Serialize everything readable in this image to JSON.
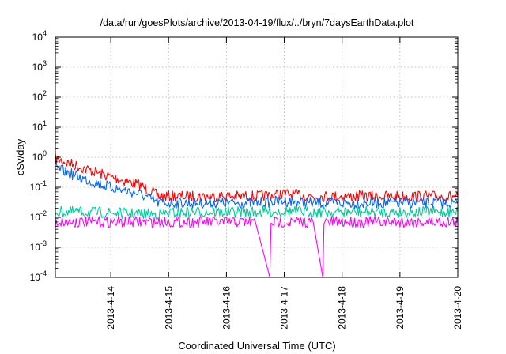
{
  "chart_data": {
    "type": "line",
    "title": "/data/run/goesPlots/archive/2013-04-19/flux/../bryn/7daysEarthData.plot",
    "xlabel": "Coordinated Universal Time (UTC)",
    "ylabel": "cSv/day",
    "yscale": "log",
    "ylim": [
      0.0001,
      10000
    ],
    "xlim": [
      "2013-04-13 01:00",
      "2013-04-20 00:00"
    ],
    "grid": true,
    "legend": "none",
    "y_ticks": [
      {
        "base": "10",
        "exp": "-4"
      },
      {
        "base": "10",
        "exp": "-3"
      },
      {
        "base": "10",
        "exp": "-2"
      },
      {
        "base": "10",
        "exp": "-1"
      },
      {
        "base": "10",
        "exp": "0"
      },
      {
        "base": "10",
        "exp": "1"
      },
      {
        "base": "10",
        "exp": "2"
      },
      {
        "base": "10",
        "exp": "3"
      },
      {
        "base": "10",
        "exp": "4"
      }
    ],
    "x_ticks": [
      "2013-4-14",
      "2013-4-15",
      "2013-4-16",
      "2013-4-17",
      "2013-4-18",
      "2013-4-19",
      "2013-4-20"
    ],
    "series": [
      {
        "color": "#ff0000",
        "x": [
          "2013-04-13 01:00",
          "2013-04-13 12:00",
          "2013-04-14 00:00",
          "2013-04-14 12:00",
          "2013-04-14 20:00",
          "2013-04-15 06:00",
          "2013-04-15 12:00",
          "2013-04-16 00:00",
          "2013-04-16 12:00",
          "2013-04-17 00:00",
          "2013-04-17 12:00",
          "2013-04-18 00:00",
          "2013-04-18 12:00",
          "2013-04-19 00:00",
          "2013-04-19 12:00",
          "2013-04-20 00:00"
        ],
        "values": [
          0.9,
          0.45,
          0.22,
          0.12,
          0.05,
          0.05,
          0.05,
          0.05,
          0.05,
          0.06,
          0.05,
          0.05,
          0.05,
          0.05,
          0.05,
          0.05
        ]
      },
      {
        "color": "#0066ff",
        "x": [
          "2013-04-13 01:00",
          "2013-04-13 12:00",
          "2013-04-14 00:00",
          "2013-04-14 12:00",
          "2013-04-14 20:00",
          "2013-04-15 06:00",
          "2013-04-15 12:00",
          "2013-04-16 00:00",
          "2013-04-16 12:00",
          "2013-04-17 00:00",
          "2013-04-17 12:00",
          "2013-04-18 00:00",
          "2013-04-18 12:00",
          "2013-04-19 00:00",
          "2013-04-19 12:00",
          "2013-04-20 00:00"
        ],
        "values": [
          0.45,
          0.2,
          0.1,
          0.06,
          0.03,
          0.03,
          0.03,
          0.03,
          0.03,
          0.035,
          0.03,
          0.03,
          0.03,
          0.03,
          0.03,
          0.03
        ]
      },
      {
        "color": "#00cc99",
        "x": [
          "2013-04-13 01:00",
          "2013-04-13 12:00",
          "2013-04-14 00:00",
          "2013-04-14 12:00",
          "2013-04-14 20:00",
          "2013-04-15 06:00",
          "2013-04-15 12:00",
          "2013-04-16 00:00",
          "2013-04-16 12:00",
          "2013-04-17 00:00",
          "2013-04-17 12:00",
          "2013-04-18 00:00",
          "2013-04-18 12:00",
          "2013-04-19 00:00",
          "2013-04-19 12:00",
          "2013-04-20 00:00"
        ],
        "values": [
          0.015,
          0.015,
          0.014,
          0.013,
          0.013,
          0.015,
          0.015,
          0.015,
          0.015,
          0.016,
          0.015,
          0.015,
          0.015,
          0.015,
          0.015,
          0.015
        ]
      },
      {
        "color": "#ff00ff",
        "x": [
          "2013-04-13 01:00",
          "2013-04-13 12:00",
          "2013-04-14 00:00",
          "2013-04-14 12:00",
          "2013-04-14 20:00",
          "2013-04-15 06:00",
          "2013-04-15 12:00",
          "2013-04-16 00:00",
          "2013-04-16 12:00",
          "2013-04-16 18:00",
          "2013-04-16 18:30",
          "2013-04-17 00:00",
          "2013-04-17 12:00",
          "2013-04-17 16:00",
          "2013-04-17 16:30",
          "2013-04-18 00:00",
          "2013-04-18 12:00",
          "2013-04-19 00:00",
          "2013-04-19 12:00",
          "2013-04-20 00:00"
        ],
        "values": [
          0.007,
          0.007,
          0.007,
          0.007,
          0.007,
          0.007,
          0.007,
          0.007,
          0.007,
          0.0001,
          0.007,
          0.007,
          0.007,
          0.0001,
          0.007,
          0.007,
          0.007,
          0.007,
          0.007,
          0.007
        ]
      }
    ]
  }
}
